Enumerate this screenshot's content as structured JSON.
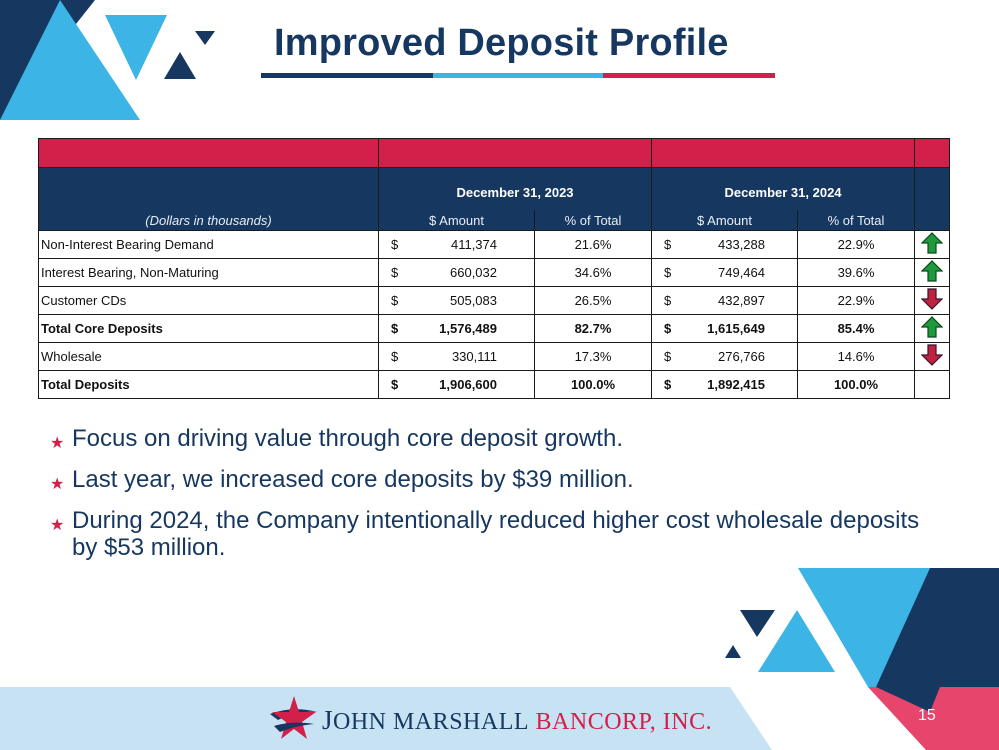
{
  "slide": {
    "title": "Improved Deposit Profile",
    "page_number": "15"
  },
  "colors": {
    "navy": "#16375f",
    "red": "#d2204a",
    "light_blue": "#3cb4e6",
    "pale_blue": "#c7e3f3",
    "arrow_up": "#1e9a3c",
    "arrow_down": "#c0213f"
  },
  "table": {
    "period_headers": [
      "December 31, 2023",
      "December 31, 2024"
    ],
    "units_label": "(Dollars in thousands)",
    "col_labels": [
      "$ Amount",
      "% of Total",
      "$ Amount",
      "% of Total"
    ],
    "rows": [
      {
        "label": "Non-Interest Bearing Demand",
        "cur1": "$",
        "amt1": "411,374",
        "pct1": "21.6%",
        "cur2": "$",
        "amt2": "433,288",
        "pct2": "22.9%",
        "trend": "up",
        "bold": false
      },
      {
        "label": "Interest Bearing, Non-Maturing",
        "cur1": "$",
        "amt1": "660,032",
        "pct1": "34.6%",
        "cur2": "$",
        "amt2": "749,464",
        "pct2": "39.6%",
        "trend": "up",
        "bold": false
      },
      {
        "label": "Customer CDs",
        "cur1": "$",
        "amt1": "505,083",
        "pct1": "26.5%",
        "cur2": "$",
        "amt2": "432,897",
        "pct2": "22.9%",
        "trend": "down",
        "bold": false
      },
      {
        "label": "Total Core Deposits",
        "cur1": "$",
        "amt1": "1,576,489",
        "pct1": "82.7%",
        "cur2": "$",
        "amt2": "1,615,649",
        "pct2": "85.4%",
        "trend": "up",
        "bold": true
      },
      {
        "label": "Wholesale",
        "cur1": "$",
        "amt1": "330,111",
        "pct1": "17.3%",
        "cur2": "$",
        "amt2": "276,766",
        "pct2": "14.6%",
        "trend": "down",
        "bold": false
      },
      {
        "label": "Total Deposits",
        "cur1": "$",
        "amt1": "1,906,600",
        "pct1": "100.0%",
        "cur2": "$",
        "amt2": "1,892,415",
        "pct2": "100.0%",
        "trend": "",
        "bold": true
      }
    ]
  },
  "bullets": [
    "Focus on driving value through core deposit growth.",
    "Last year, we increased core deposits by $39 million.",
    "During 2024, the Company intentionally reduced higher cost wholesale deposits by $53 million."
  ],
  "logo": {
    "name_part1": "John Marshall",
    "name_part2": "Bancorp, Inc.",
    "icon": "star-swoosh-logo-icon"
  },
  "icons": {
    "bullet": "star-bullet-icon",
    "trend_up": "green-up-arrow-icon",
    "trend_down": "red-down-arrow-icon"
  }
}
